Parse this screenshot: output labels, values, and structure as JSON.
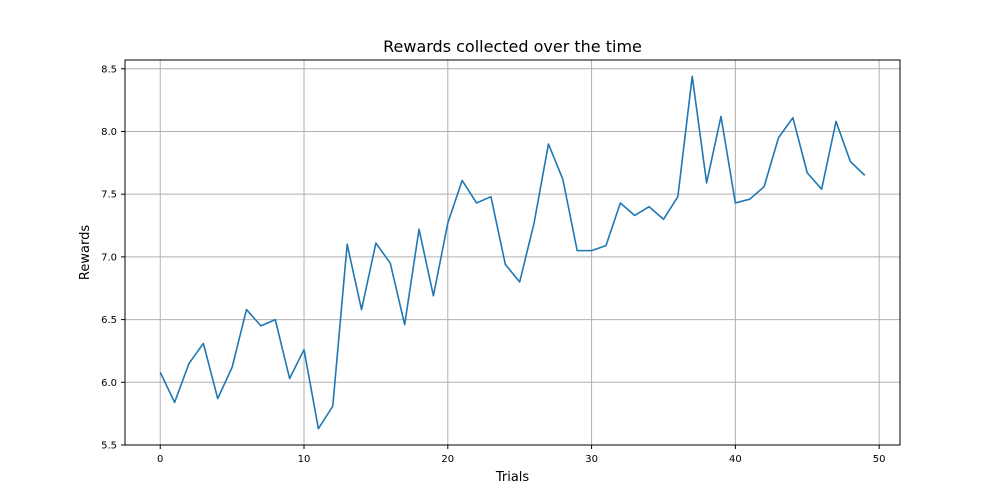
{
  "chart_data": {
    "type": "line",
    "title": "Rewards collected over the time",
    "xlabel": "Trials",
    "ylabel": "Rewards",
    "xlim": [
      -2.45,
      51.45
    ],
    "ylim": [
      5.5,
      8.57
    ],
    "xticks": [
      0,
      10,
      20,
      30,
      40,
      50
    ],
    "yticks": [
      5.5,
      6.0,
      6.5,
      7.0,
      7.5,
      8.0,
      8.5
    ],
    "xtick_labels": [
      "0",
      "10",
      "20",
      "30",
      "40",
      "50"
    ],
    "ytick_labels": [
      "5.5",
      "6.0",
      "6.5",
      "7.0",
      "7.5",
      "8.0",
      "8.5"
    ],
    "grid": true,
    "legend": "none",
    "series": [
      {
        "color": "#1f77b4",
        "x": [
          0,
          1,
          2,
          3,
          4,
          5,
          6,
          7,
          8,
          9,
          10,
          11,
          12,
          13,
          14,
          15,
          16,
          17,
          18,
          19,
          20,
          21,
          22,
          23,
          24,
          25,
          26,
          27,
          28,
          29,
          30,
          31,
          32,
          33,
          34,
          35,
          36,
          37,
          38,
          39,
          40,
          41,
          42,
          43,
          44,
          45,
          46,
          47,
          48,
          49
        ],
        "y": [
          6.08,
          5.84,
          6.15,
          6.31,
          5.87,
          6.12,
          6.58,
          6.45,
          6.5,
          6.03,
          6.26,
          5.63,
          5.81,
          7.1,
          6.58,
          7.11,
          6.95,
          6.46,
          7.22,
          6.69,
          7.27,
          7.61,
          7.43,
          7.48,
          6.94,
          6.8,
          7.27,
          7.9,
          7.62,
          7.05,
          7.05,
          7.09,
          7.43,
          7.33,
          7.4,
          7.3,
          7.48,
          8.44,
          7.59,
          8.12,
          7.43,
          7.46,
          7.56,
          7.95,
          8.11,
          7.67,
          7.54,
          8.08,
          7.76,
          7.65
        ]
      }
    ]
  }
}
